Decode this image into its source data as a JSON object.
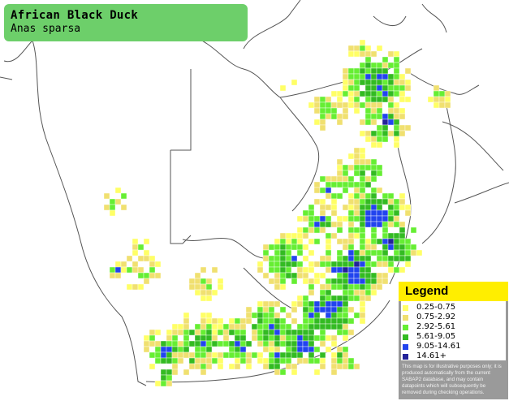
{
  "title": {
    "common_name": "African Black Duck",
    "scientific_name": "Anas sparsa"
  },
  "legend": {
    "heading": "Legend",
    "items": [
      {
        "label": "0.25-0.75",
        "color": "#ffff66"
      },
      {
        "label": "0.75-2.92",
        "color": "#f0e070"
      },
      {
        "label": "2.92-5.61",
        "color": "#66ee33"
      },
      {
        "label": "5.61-9.05",
        "color": "#33bb22"
      },
      {
        "label": "9.05-14.61",
        "color": "#2244ee"
      },
      {
        "label": "14.61+",
        "color": "#222299"
      }
    ],
    "disclaimer": "This map is for illustrative purposes only; it is produced automatically from the current SABAP2 database, and may contain datapoints which will subsequently be removed during checking operations."
  },
  "map_colors": {
    "land": "#ffffff",
    "borders": "#555555",
    "grid": "#ffffff"
  }
}
